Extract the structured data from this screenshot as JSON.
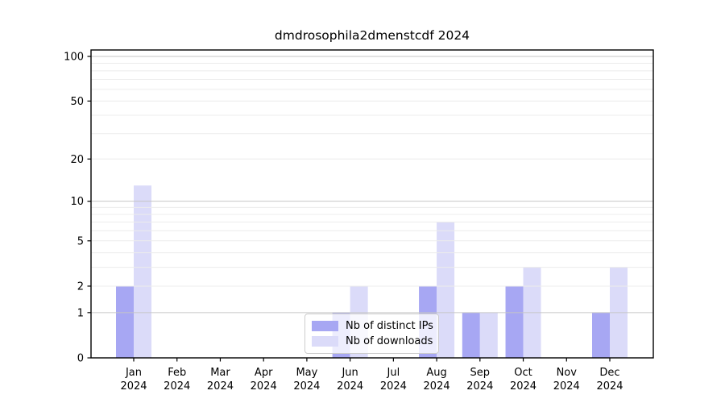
{
  "chart_data": {
    "type": "bar",
    "title": "dmdrosophila2dmenstcdf 2024",
    "categories": [
      "Jan",
      "Feb",
      "Mar",
      "Apr",
      "May",
      "Jun",
      "Jul",
      "Aug",
      "Sep",
      "Oct",
      "Nov",
      "Dec"
    ],
    "year_label": "2024",
    "series": [
      {
        "name": "Nb of distinct IPs",
        "color": "#a7a7f3",
        "values": [
          2,
          0,
          0,
          0,
          0,
          1,
          0,
          2,
          1,
          2,
          0,
          1
        ]
      },
      {
        "name": "Nb of downloads",
        "color": "#dbdbf9",
        "values": [
          13,
          0,
          0,
          0,
          0,
          2,
          0,
          7,
          1,
          3,
          0,
          3
        ]
      }
    ],
    "yscale": "log10(value+1)",
    "ylim": [
      0,
      110
    ],
    "yticks": [
      0,
      1,
      2,
      5,
      10,
      20,
      50,
      100
    ],
    "major_grid_values": [
      1,
      10,
      100
    ],
    "minor_grid_values": [
      2,
      3,
      4,
      5,
      6,
      7,
      8,
      9,
      20,
      30,
      40,
      50,
      60,
      70,
      80,
      90
    ],
    "grid": true,
    "legend_position": "lower center",
    "colors": {
      "axis": "#000000",
      "major_grid": "#c6c6c6",
      "minor_grid": "#ececec",
      "tick_text": "#000000"
    }
  }
}
